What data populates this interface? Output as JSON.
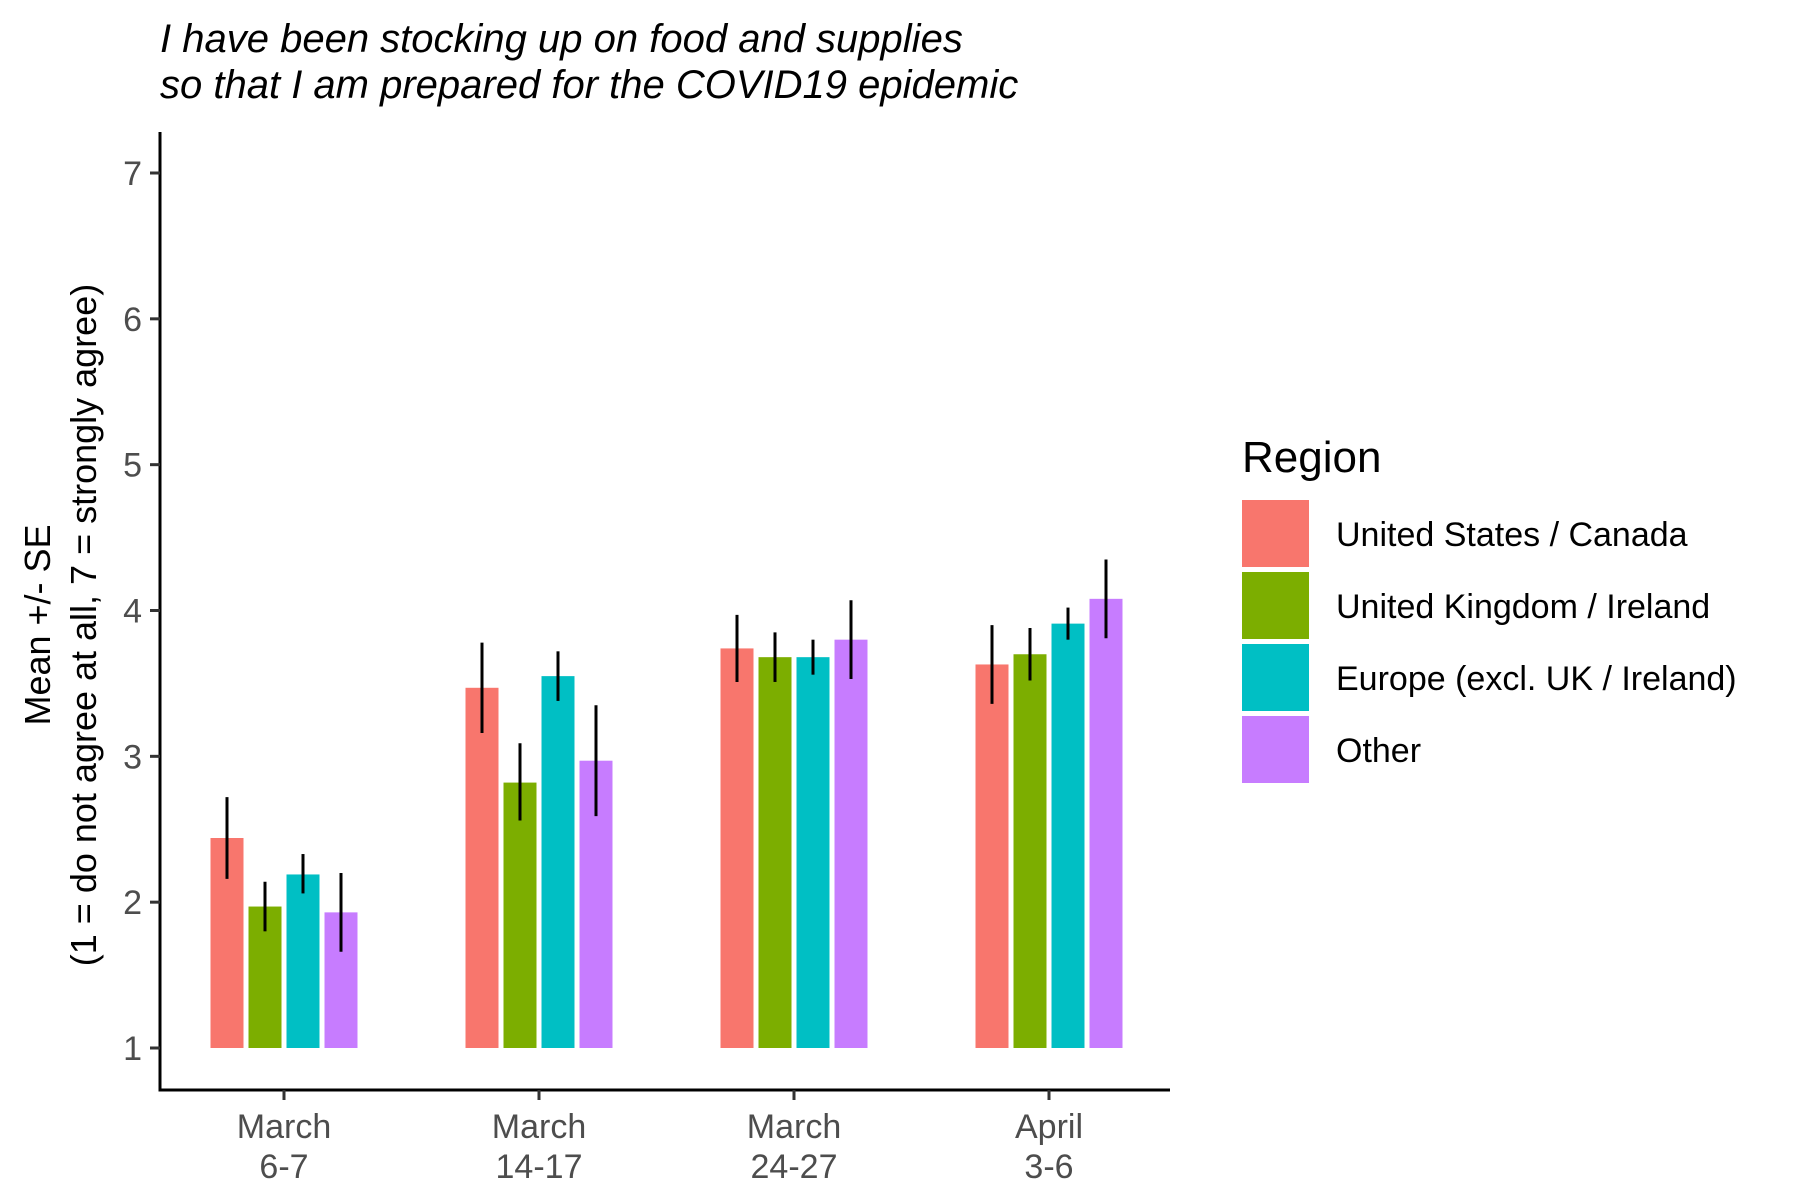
{
  "chart_data": {
    "type": "bar",
    "title_lines": [
      "I have been stocking up on food and supplies",
      "so that I am prepared for the COVID19 epidemic"
    ],
    "ylabel_lines": [
      "Mean +/- SE",
      "(1 = do not agree at all, 7 = strongly agree)"
    ],
    "xlabel": "",
    "categories": [
      [
        "March",
        "6-7"
      ],
      [
        "March",
        "14-17"
      ],
      [
        "March",
        "24-27"
      ],
      [
        "April",
        "3-6"
      ]
    ],
    "ylim": [
      1,
      7
    ],
    "yticks": [
      "1",
      "2",
      "3",
      "4",
      "5",
      "6",
      "7"
    ],
    "grid": false,
    "legend": {
      "title": "Region",
      "placement": "right"
    },
    "series": [
      {
        "name": "United States / Canada",
        "color": "#F8766D",
        "values": [
          2.44,
          3.47,
          3.74,
          3.63
        ],
        "se_low": [
          2.16,
          3.16,
          3.51,
          3.36
        ],
        "se_high": [
          2.72,
          3.78,
          3.97,
          3.9
        ]
      },
      {
        "name": "United Kingdom / Ireland",
        "color": "#7CAE00",
        "values": [
          1.97,
          2.82,
          3.68,
          3.7
        ],
        "se_low": [
          1.8,
          2.56,
          3.51,
          3.52
        ],
        "se_high": [
          2.14,
          3.09,
          3.85,
          3.88
        ]
      },
      {
        "name": "Europe (excl. UK / Ireland)",
        "color": "#00BFC4",
        "values": [
          2.19,
          3.55,
          3.68,
          3.91
        ],
        "se_low": [
          2.06,
          3.38,
          3.56,
          3.8
        ],
        "se_high": [
          2.33,
          3.72,
          3.8,
          4.02
        ]
      },
      {
        "name": "Other",
        "color": "#C77CFF",
        "values": [
          1.93,
          2.97,
          3.8,
          4.08
        ],
        "se_low": [
          1.66,
          2.59,
          3.53,
          3.81
        ],
        "se_high": [
          2.2,
          3.35,
          4.07,
          4.35
        ]
      }
    ]
  }
}
